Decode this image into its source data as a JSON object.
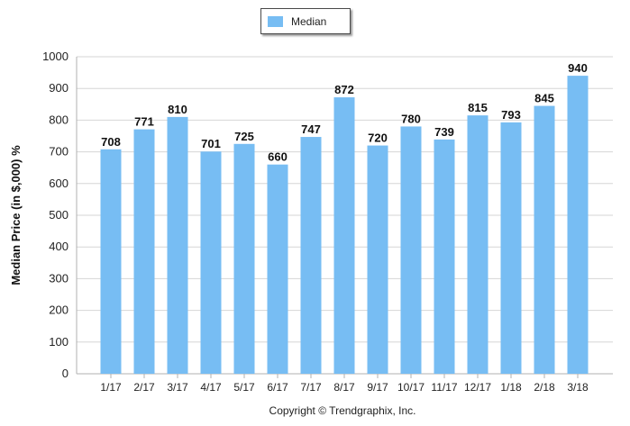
{
  "legend": {
    "label": "Median",
    "color": "#77bdf3"
  },
  "footer": {
    "copyright": "Copyright © Trendgraphix, Inc."
  },
  "chart_data": {
    "type": "bar",
    "title": "",
    "xlabel": "",
    "ylabel": "Median Price (in $,000) %",
    "ylim": [
      0,
      1000
    ],
    "yticks": [
      0,
      100,
      200,
      300,
      400,
      500,
      600,
      700,
      800,
      900,
      1000
    ],
    "grid": true,
    "legend_position": "top-center",
    "categories": [
      "1/17",
      "2/17",
      "3/17",
      "4/17",
      "5/17",
      "6/17",
      "7/17",
      "8/17",
      "9/17",
      "10/17",
      "11/17",
      "12/17",
      "1/18",
      "2/18",
      "3/18"
    ],
    "series": [
      {
        "name": "Median",
        "color": "#77bdf3",
        "values": [
          708,
          771,
          810,
          701,
          725,
          660,
          747,
          872,
          720,
          780,
          739,
          815,
          793,
          845,
          940
        ]
      }
    ]
  }
}
